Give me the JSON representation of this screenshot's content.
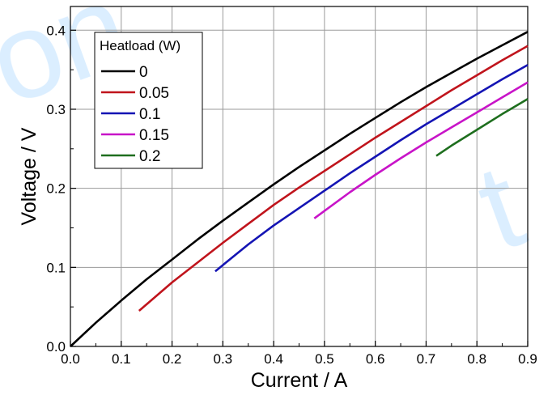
{
  "chart_data": {
    "type": "line",
    "title": "",
    "xlabel": "Current / A",
    "ylabel": "Voltage / V",
    "xlim": [
      0.0,
      0.9
    ],
    "ylim": [
      0.0,
      0.43
    ],
    "grid": true,
    "x_ticks": [
      0.0,
      0.1,
      0.2,
      0.3,
      0.4,
      0.5,
      0.6,
      0.7,
      0.8,
      0.9
    ],
    "x_tick_labels": [
      "0.0",
      "0.1",
      "0.2",
      "0.3",
      "0.4",
      "0.5",
      "0.6",
      "0.7",
      "0.8",
      "0.9"
    ],
    "y_ticks": [
      0.0,
      0.1,
      0.2,
      0.3,
      0.4
    ],
    "y_tick_labels": [
      "0.0",
      "0.1",
      "0.2",
      "0.3",
      "0.4"
    ],
    "legend": {
      "title": "Heatload (W)",
      "placement": "top-left"
    },
    "series": [
      {
        "name": "0",
        "color": "#000000",
        "x": [
          0.0,
          0.05,
          0.1,
          0.15,
          0.2,
          0.25,
          0.3,
          0.35,
          0.4,
          0.45,
          0.5,
          0.55,
          0.6,
          0.65,
          0.7,
          0.75,
          0.8,
          0.85,
          0.9
        ],
        "y": [
          0.0,
          0.03,
          0.058,
          0.085,
          0.11,
          0.135,
          0.159,
          0.182,
          0.205,
          0.227,
          0.248,
          0.269,
          0.289,
          0.309,
          0.328,
          0.346,
          0.364,
          0.381,
          0.398
        ]
      },
      {
        "name": "0.05",
        "color": "#c0141c",
        "x": [
          0.135,
          0.2,
          0.25,
          0.3,
          0.35,
          0.4,
          0.45,
          0.5,
          0.55,
          0.6,
          0.65,
          0.7,
          0.75,
          0.8,
          0.85,
          0.9
        ],
        "y": [
          0.045,
          0.081,
          0.106,
          0.131,
          0.155,
          0.179,
          0.201,
          0.222,
          0.243,
          0.264,
          0.284,
          0.304,
          0.324,
          0.343,
          0.362,
          0.38
        ]
      },
      {
        "name": "0.1",
        "color": "#1414b4",
        "x": [
          0.285,
          0.35,
          0.4,
          0.45,
          0.5,
          0.55,
          0.6,
          0.65,
          0.7,
          0.75,
          0.8,
          0.85,
          0.9
        ],
        "y": [
          0.095,
          0.129,
          0.153,
          0.175,
          0.197,
          0.219,
          0.24,
          0.261,
          0.281,
          0.3,
          0.319,
          0.338,
          0.356
        ]
      },
      {
        "name": "0.15",
        "color": "#c814c8",
        "x": [
          0.48,
          0.55,
          0.6,
          0.65,
          0.7,
          0.75,
          0.8,
          0.85,
          0.9
        ],
        "y": [
          0.162,
          0.195,
          0.217,
          0.238,
          0.258,
          0.277,
          0.296,
          0.315,
          0.334
        ]
      },
      {
        "name": "0.2",
        "color": "#1e6e1e",
        "x": [
          0.72,
          0.75,
          0.8,
          0.85,
          0.9
        ],
        "y": [
          0.241,
          0.254,
          0.274,
          0.294,
          0.313
        ]
      }
    ]
  }
}
